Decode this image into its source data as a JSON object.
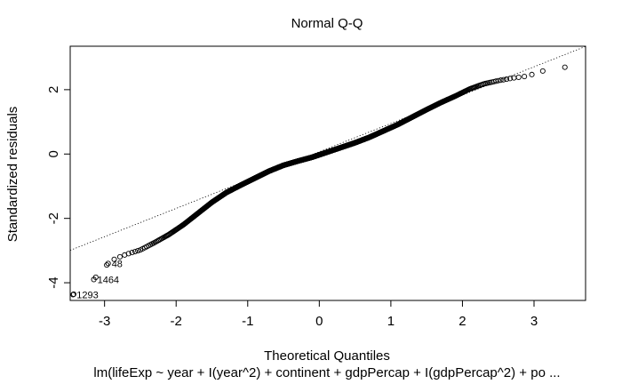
{
  "chart_data": {
    "type": "scatter",
    "title": "Normal Q-Q",
    "xlabel": "Theoretical Quantiles",
    "ylabel": "Standardized residuals",
    "caption": "lm(lifeExp ~ year + I(year^2) + continent + gdpPercap + I(gdpPercap^2) + po ...",
    "xlim": [
      -3.48,
      3.72
    ],
    "ylim": [
      -4.55,
      3.35
    ],
    "xticks": [
      -3,
      -2,
      -1,
      0,
      1,
      2,
      3
    ],
    "yticks": [
      -4,
      -2,
      0,
      2
    ],
    "grid": false,
    "legend": "none",
    "n_points": 1704,
    "reference_line": {
      "intercept": 0.07,
      "slope": 0.88
    },
    "qq_curve": {
      "x": [
        -3.44,
        -3.15,
        -2.95,
        -2.85,
        -2.7,
        -2.5,
        -2.3,
        -2.1,
        -1.9,
        -1.7,
        -1.5,
        -1.3,
        -1.1,
        -0.9,
        -0.7,
        -0.5,
        -0.3,
        -0.1,
        0.1,
        0.3,
        0.5,
        0.7,
        0.9,
        1.1,
        1.3,
        1.5,
        1.7,
        1.9,
        2.1,
        2.3,
        2.5,
        2.7,
        2.9,
        3.15,
        3.44
      ],
      "y": [
        -4.37,
        -3.9,
        -3.4,
        -3.25,
        -3.12,
        -2.98,
        -2.75,
        -2.5,
        -2.2,
        -1.85,
        -1.5,
        -1.2,
        -0.97,
        -0.75,
        -0.53,
        -0.35,
        -0.22,
        -0.1,
        0.05,
        0.2,
        0.35,
        0.52,
        0.72,
        0.92,
        1.15,
        1.38,
        1.6,
        1.8,
        2.02,
        2.18,
        2.28,
        2.36,
        2.42,
        2.6,
        2.7
      ]
    },
    "labeled_points": [
      {
        "label": "1293",
        "x": -3.44,
        "y": -4.37
      },
      {
        "label": "1464",
        "x": -3.15,
        "y": -3.9
      },
      {
        "label": "48",
        "x": -2.95,
        "y": -3.4
      }
    ]
  }
}
